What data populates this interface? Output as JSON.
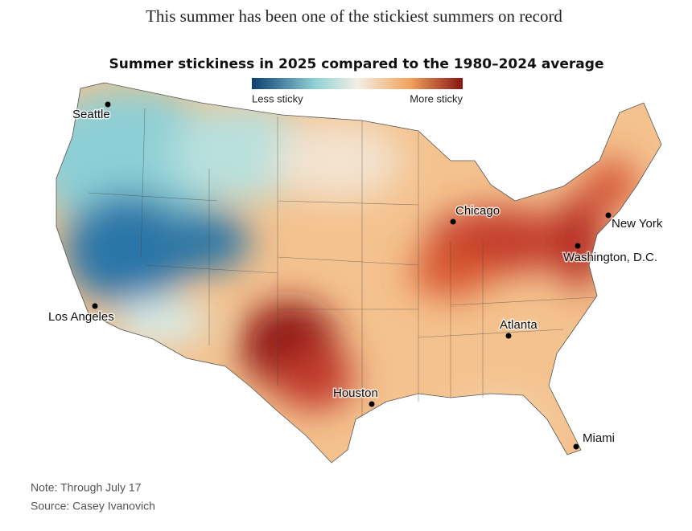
{
  "header": {
    "headline": "This summer has been one of the stickiest summers on record"
  },
  "map": {
    "title": "Summer stickiness in 2025 compared to the 1980–2024 average",
    "legend": {
      "low": "Less sticky",
      "high": "More sticky"
    },
    "cities": [
      {
        "label": "Seattle"
      },
      {
        "label": "Chicago"
      },
      {
        "label": "New York"
      },
      {
        "label": "Washington, D.C."
      },
      {
        "label": "Los Angeles"
      },
      {
        "label": "Atlanta"
      },
      {
        "label": "Houston"
      },
      {
        "label": "Miami"
      }
    ]
  },
  "footer": {
    "note": "Note: Through July 17",
    "source": "Source: Casey Ivanovich"
  }
}
